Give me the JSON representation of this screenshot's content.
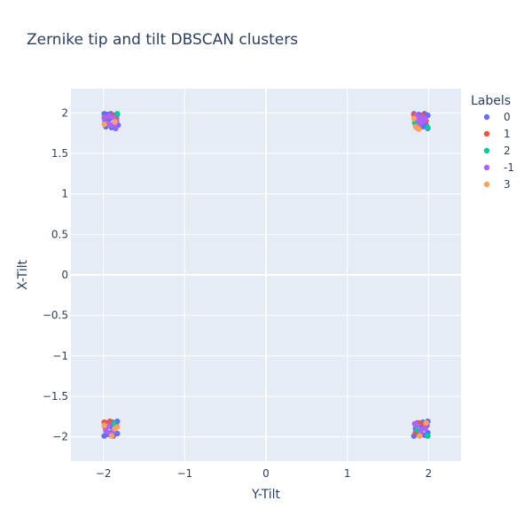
{
  "chart_data": {
    "type": "scatter",
    "title": "Zernike tip and tilt DBSCAN clusters",
    "xlabel": "Y-Tilt",
    "ylabel": "X-Tilt",
    "xlim": [
      -2.4,
      2.4
    ],
    "ylim": [
      -2.3,
      2.3
    ],
    "xticks": [
      -2,
      -1,
      0,
      1,
      2
    ],
    "xtick_labels": [
      "−2",
      "−1",
      "0",
      "1",
      "2"
    ],
    "yticks": [
      2,
      1.5,
      1,
      0.5,
      0,
      -0.5,
      -1,
      -1.5,
      -2
    ],
    "ytick_labels": [
      "2",
      "1.5",
      "1",
      "0.5",
      "0",
      "−0.5",
      "−1",
      "−1.5",
      "−2"
    ],
    "grid": true,
    "plot_background": "#e5ecf6",
    "legend": {
      "title": "Labels",
      "position": "top-right"
    },
    "series": [
      {
        "name": "0",
        "color": "#636efa",
        "points": [
          [
            -1.99,
            1.99
          ],
          [
            -1.95,
            1.98
          ],
          [
            -1.91,
            1.99
          ],
          [
            -1.87,
            1.97
          ],
          [
            -1.83,
            1.98
          ],
          [
            -1.98,
            1.9
          ],
          [
            -1.93,
            1.92
          ],
          [
            -1.86,
            1.88
          ],
          [
            -1.82,
            1.85
          ],
          [
            -1.97,
            1.83
          ],
          [
            -1.9,
            1.82
          ],
          [
            -1.85,
            1.81
          ],
          [
            1.82,
            1.99
          ],
          [
            1.88,
            1.98
          ],
          [
            1.95,
            1.99
          ],
          [
            1.99,
            1.97
          ],
          [
            1.84,
            1.9
          ],
          [
            1.91,
            1.88
          ],
          [
            1.97,
            1.85
          ],
          [
            1.86,
            1.82
          ],
          [
            1.93,
            1.83
          ],
          [
            1.99,
            1.81
          ],
          [
            -1.99,
            -1.99
          ],
          [
            -1.94,
            -1.97
          ],
          [
            -1.88,
            -1.99
          ],
          [
            -1.83,
            -1.96
          ],
          [
            -1.97,
            -1.9
          ],
          [
            -1.9,
            -1.88
          ],
          [
            -1.84,
            -1.86
          ],
          [
            -1.96,
            -1.83
          ],
          [
            -1.89,
            -1.82
          ],
          [
            -1.83,
            -1.81
          ],
          [
            1.82,
            -1.99
          ],
          [
            1.88,
            -1.97
          ],
          [
            1.95,
            -1.98
          ],
          [
            1.99,
            -1.95
          ],
          [
            1.84,
            -1.9
          ],
          [
            1.92,
            -1.88
          ],
          [
            1.98,
            -1.86
          ],
          [
            1.86,
            -1.83
          ],
          [
            1.93,
            -1.82
          ],
          [
            1.99,
            -1.81
          ]
        ]
      },
      {
        "name": "1",
        "color": "#ef553b",
        "points": [
          [
            -1.96,
            1.95
          ],
          [
            -1.9,
            1.97
          ],
          [
            -1.84,
            1.93
          ],
          [
            1.82,
            1.98
          ],
          [
            1.87,
            1.95
          ],
          [
            1.92,
            1.97
          ],
          [
            1.97,
            1.9
          ],
          [
            1.84,
            1.86
          ],
          [
            -1.99,
            -1.82
          ],
          [
            -1.96,
            -1.84
          ],
          [
            -1.92,
            -1.81
          ],
          [
            -1.98,
            -1.88
          ],
          [
            1.88,
            -1.83
          ],
          [
            1.95,
            -1.85
          ],
          [
            1.84,
            -1.95
          ]
        ]
      },
      {
        "name": "2",
        "color": "#00cc96",
        "points": [
          [
            -1.83,
            1.99
          ],
          [
            -1.88,
            1.86
          ],
          [
            1.83,
            1.88
          ],
          [
            1.99,
            1.82
          ],
          [
            1.9,
            1.93
          ],
          [
            -1.87,
            -1.84
          ],
          [
            1.99,
            -1.99
          ],
          [
            1.86,
            -1.92
          ]
        ]
      },
      {
        "name": "-1",
        "color": "#ab63fa",
        "points": [
          [
            -1.99,
            1.94
          ],
          [
            -1.93,
            1.96
          ],
          [
            -1.88,
            1.94
          ],
          [
            -1.84,
            1.9
          ],
          [
            -1.95,
            1.87
          ],
          [
            -1.9,
            1.85
          ],
          [
            -1.85,
            1.83
          ],
          [
            1.85,
            1.97
          ],
          [
            1.91,
            1.95
          ],
          [
            1.96,
            1.93
          ],
          [
            1.88,
            1.91
          ],
          [
            1.94,
            1.9
          ],
          [
            1.89,
            1.86
          ],
          [
            -1.97,
            -1.93
          ],
          [
            -1.92,
            -1.95
          ],
          [
            -1.87,
            -1.92
          ],
          [
            -1.94,
            -1.86
          ],
          [
            -1.86,
            -1.89
          ],
          [
            1.86,
            -1.86
          ],
          [
            1.91,
            -1.92
          ],
          [
            1.96,
            -1.9
          ],
          [
            1.83,
            -1.84
          ],
          [
            1.9,
            -1.95
          ]
        ]
      },
      {
        "name": "3",
        "color": "#ffa15a",
        "points": [
          [
            -1.99,
            1.86
          ],
          [
            -1.86,
            1.89
          ],
          [
            1.84,
            1.83
          ],
          [
            1.88,
            1.8
          ],
          [
            1.82,
            1.93
          ],
          [
            -1.99,
            -1.86
          ],
          [
            -1.86,
            -1.9
          ],
          [
            -1.9,
            -1.99
          ],
          [
            -1.83,
            -1.88
          ],
          [
            1.89,
            -1.99
          ],
          [
            1.97,
            -1.83
          ]
        ]
      }
    ]
  }
}
